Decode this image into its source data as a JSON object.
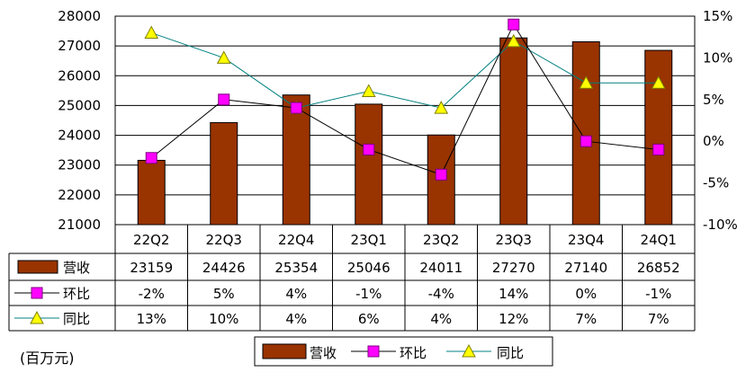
{
  "chart_data": {
    "type": "bar",
    "categories": [
      "22Q2",
      "22Q3",
      "22Q4",
      "23Q1",
      "23Q2",
      "23Q3",
      "23Q4",
      "24Q1"
    ],
    "series": [
      {
        "name": "营收",
        "kind": "bar",
        "axis": "left",
        "values": [
          23159,
          24426,
          25354,
          25046,
          24011,
          27270,
          27140,
          26852
        ],
        "labels": [
          "23159",
          "24426",
          "25354",
          "25046",
          "24011",
          "27270",
          "27140",
          "26852"
        ],
        "color": "#993300"
      },
      {
        "name": "环比",
        "kind": "line",
        "axis": "right",
        "values": [
          -2,
          5,
          4,
          -1,
          -4,
          14,
          0,
          -1
        ],
        "labels": [
          "-2%",
          "5%",
          "4%",
          "-1%",
          "-4%",
          "14%",
          "0%",
          "-1%"
        ],
        "color": "#000000",
        "marker": "square",
        "marker_color": "#ff00ff"
      },
      {
        "name": "同比",
        "kind": "line",
        "axis": "right",
        "values": [
          13,
          10,
          4,
          6,
          4,
          12,
          7,
          7
        ],
        "labels": [
          "13%",
          "10%",
          "4%",
          "6%",
          "4%",
          "12%",
          "7%",
          "7%"
        ],
        "color": "#008080",
        "marker": "triangle",
        "marker_color": "#ffff00"
      }
    ],
    "y_left": {
      "min": 21000,
      "max": 28000,
      "step": 1000,
      "ticks": [
        "21000",
        "22000",
        "23000",
        "24000",
        "25000",
        "26000",
        "27000",
        "28000"
      ]
    },
    "y_right": {
      "min": -10,
      "max": 15,
      "step": 5,
      "ticks": [
        "-10%",
        "-5%",
        "0%",
        "5%",
        "10%",
        "15%"
      ]
    },
    "grid": true,
    "data_table": true,
    "legend_position": "bottom",
    "unit_label": "(百万元)"
  }
}
